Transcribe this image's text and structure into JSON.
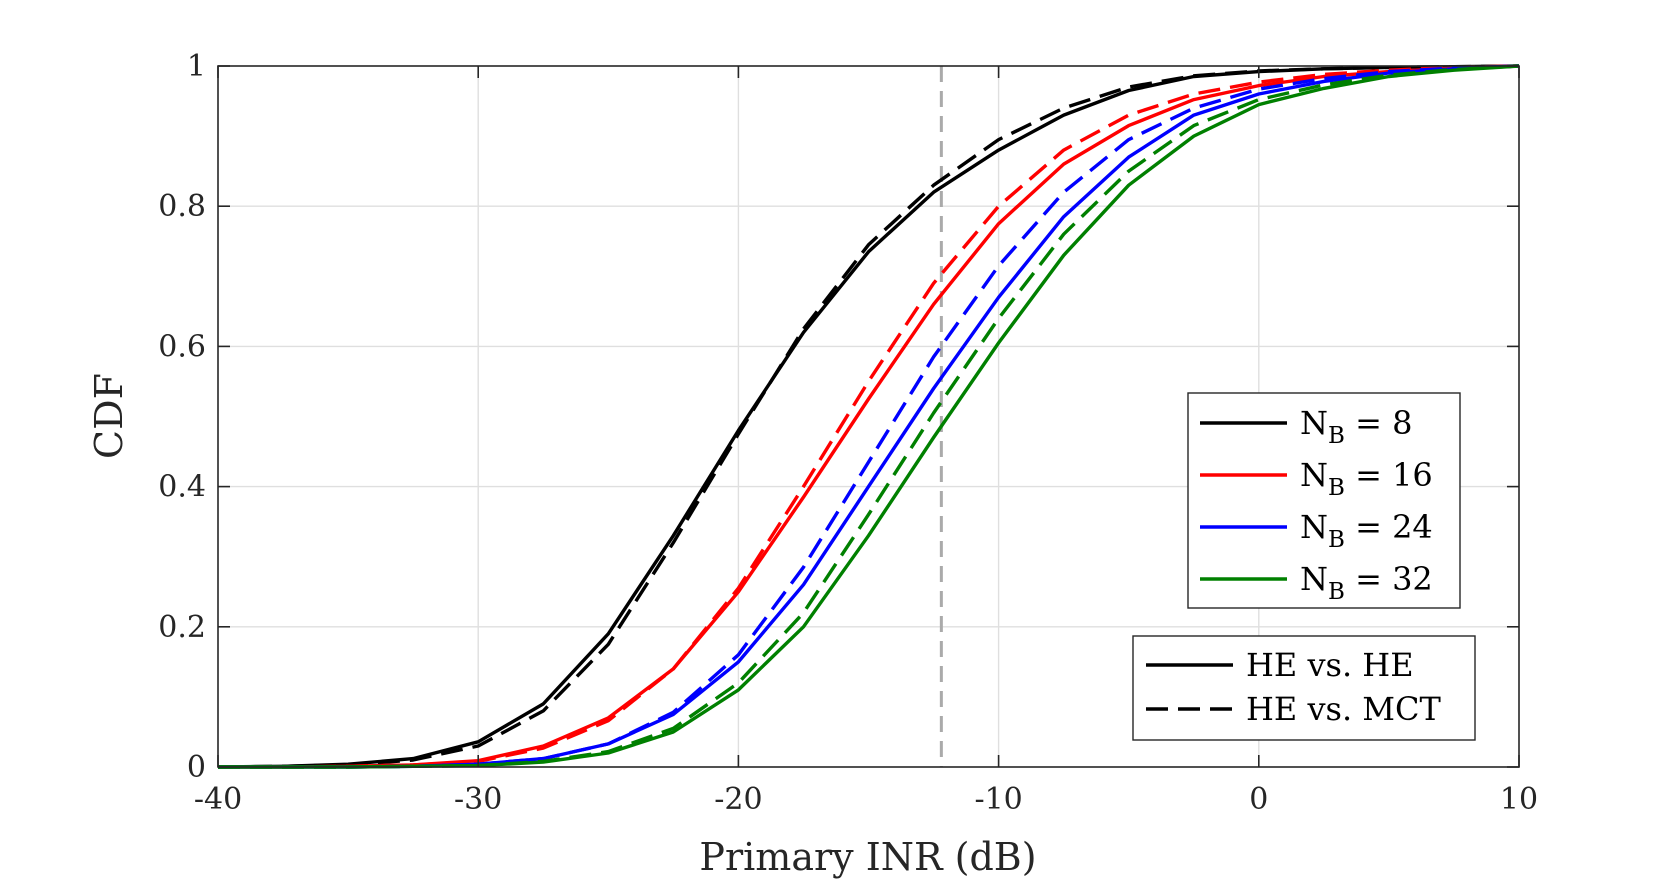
{
  "chart_data": {
    "type": "line",
    "xlabel": "Primary INR (dB)",
    "ylabel": "CDF",
    "xlim": [
      -40,
      10
    ],
    "ylim": [
      0,
      1
    ],
    "xticks": [
      -40,
      -30,
      -20,
      -10,
      0,
      10
    ],
    "xtick_labels": [
      "-40",
      "-30",
      "-20",
      "-10",
      "0",
      "10"
    ],
    "yticks": [
      0,
      0.2,
      0.4,
      0.6,
      0.8,
      1
    ],
    "ytick_labels": [
      "0",
      "0.2",
      "0.4",
      "0.6",
      "0.8",
      "1"
    ],
    "grid": true,
    "reference_line": {
      "x": -12.2,
      "style": "dashed",
      "color": "#aaaaaa"
    },
    "legend_colors": {
      "placement": "right",
      "entries": [
        {
          "base": "N",
          "sub": "B",
          "suffix": " = 8",
          "color": "#000000"
        },
        {
          "base": "N",
          "sub": "B",
          "suffix": " = 16",
          "color": "#ff0000"
        },
        {
          "base": "N",
          "sub": "B",
          "suffix": " = 24",
          "color": "#0000ff"
        },
        {
          "base": "N",
          "sub": "B",
          "suffix": " = 32",
          "color": "#008000"
        }
      ]
    },
    "legend_styles": {
      "placement": "bottom-right",
      "entries": [
        {
          "label": "HE vs. HE",
          "style": "solid"
        },
        {
          "label": "HE vs. MCT",
          "style": "dashed"
        }
      ]
    },
    "x": [
      -40,
      -37.5,
      -35,
      -32.5,
      -30,
      -27.5,
      -25,
      -22.5,
      -20,
      -17.5,
      -15,
      -12.5,
      -10,
      -7.5,
      -5,
      -2.5,
      0,
      2.5,
      5,
      7.5,
      10
    ],
    "series": [
      {
        "name": "N_B = 8, HE vs. HE",
        "color": "#000000",
        "style": "solid",
        "values": [
          0,
          0.001,
          0.004,
          0.012,
          0.036,
          0.09,
          0.19,
          0.33,
          0.48,
          0.62,
          0.735,
          0.82,
          0.88,
          0.93,
          0.965,
          0.985,
          0.992,
          0.996,
          0.998,
          0.999,
          1
        ]
      },
      {
        "name": "N_B = 8, HE vs. MCT",
        "color": "#000000",
        "style": "dashed",
        "values": [
          0,
          0.001,
          0.003,
          0.01,
          0.03,
          0.08,
          0.175,
          0.32,
          0.475,
          0.625,
          0.745,
          0.83,
          0.895,
          0.94,
          0.97,
          0.986,
          0.993,
          0.996,
          0.998,
          0.999,
          1
        ]
      },
      {
        "name": "N_B = 16, HE vs. HE",
        "color": "#ff0000",
        "style": "solid",
        "values": [
          0,
          0,
          0.001,
          0.003,
          0.009,
          0.03,
          0.07,
          0.14,
          0.25,
          0.385,
          0.525,
          0.66,
          0.775,
          0.86,
          0.915,
          0.952,
          0.972,
          0.985,
          0.992,
          0.997,
          1
        ]
      },
      {
        "name": "N_B = 16, HE vs. MCT",
        "color": "#ff0000",
        "style": "dashed",
        "values": [
          0,
          0,
          0.001,
          0.003,
          0.008,
          0.027,
          0.066,
          0.14,
          0.255,
          0.4,
          0.55,
          0.69,
          0.8,
          0.88,
          0.93,
          0.96,
          0.977,
          0.988,
          0.994,
          0.998,
          1
        ]
      },
      {
        "name": "N_B = 24, HE vs. HE",
        "color": "#0000ff",
        "style": "solid",
        "values": [
          0,
          0,
          0,
          0.001,
          0.004,
          0.012,
          0.033,
          0.075,
          0.15,
          0.26,
          0.4,
          0.54,
          0.67,
          0.785,
          0.87,
          0.93,
          0.96,
          0.978,
          0.99,
          0.996,
          1
        ]
      },
      {
        "name": "N_B = 24, HE vs. MCT",
        "color": "#0000ff",
        "style": "dashed",
        "values": [
          0,
          0,
          0,
          0.001,
          0.004,
          0.012,
          0.033,
          0.078,
          0.16,
          0.285,
          0.435,
          0.585,
          0.715,
          0.82,
          0.895,
          0.94,
          0.967,
          0.982,
          0.992,
          0.997,
          1
        ]
      },
      {
        "name": "N_B = 32, HE vs. HE",
        "color": "#008000",
        "style": "solid",
        "values": [
          0,
          0,
          0,
          0.001,
          0.002,
          0.007,
          0.02,
          0.05,
          0.11,
          0.2,
          0.33,
          0.47,
          0.605,
          0.73,
          0.83,
          0.9,
          0.945,
          0.968,
          0.985,
          0.994,
          1
        ]
      },
      {
        "name": "N_B = 32, HE vs. MCT",
        "color": "#008000",
        "style": "dashed",
        "values": [
          0,
          0,
          0,
          0.001,
          0.002,
          0.008,
          0.022,
          0.055,
          0.12,
          0.22,
          0.36,
          0.505,
          0.64,
          0.76,
          0.85,
          0.915,
          0.952,
          0.973,
          0.987,
          0.995,
          1
        ]
      }
    ]
  }
}
